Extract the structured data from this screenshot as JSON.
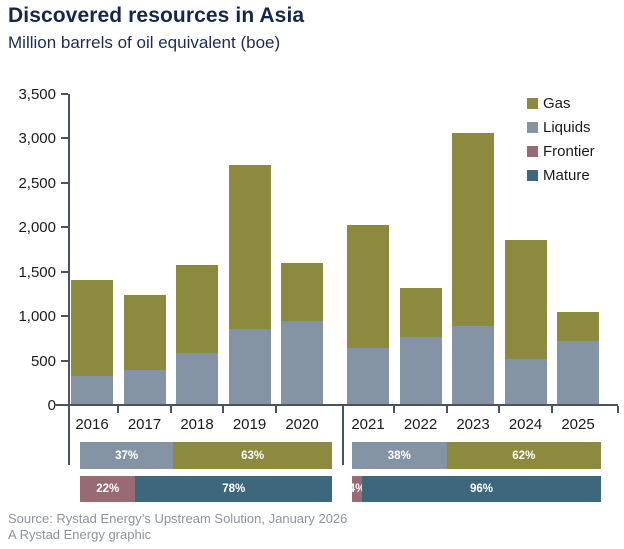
{
  "header": {
    "title": "Discovered resources in Asia",
    "subtitle": "Million barrels of oil equivalent (boe)"
  },
  "colors": {
    "gas": "#8c8a3f",
    "liquids": "#8594a4",
    "frontier": "#9a6a72",
    "mature": "#3d687c",
    "title_navy": "#15284b",
    "axis": "#4a545c",
    "tick_label": "#1a1a1a",
    "source_gray": "#8b949e"
  },
  "legend": {
    "items": [
      {
        "key": "gas",
        "label": "Gas"
      },
      {
        "key": "liquids",
        "label": "Liquids"
      },
      {
        "key": "frontier",
        "label": "Frontier"
      },
      {
        "key": "mature",
        "label": "Mature"
      }
    ]
  },
  "chart_data": {
    "type": "bar",
    "stacked": true,
    "title": "Discovered resources in Asia",
    "ylabel": "Million barrels of oil equivalent (boe)",
    "xlabel": "",
    "grid": false,
    "legend_position": "top-right",
    "ylim": [
      0,
      3500
    ],
    "ytick_values": [
      0,
      500,
      1000,
      1500,
      2000,
      2500,
      3000,
      3500
    ],
    "ytick_labels": [
      "0",
      "500",
      "1,000",
      "1,500",
      "2,000",
      "2,500",
      "3,000",
      "3,500"
    ],
    "categories": [
      "2016",
      "2017",
      "2018",
      "2019",
      "2020",
      "2021",
      "2022",
      "2023",
      "2024",
      "2025"
    ],
    "series": [
      {
        "name": "Liquids",
        "color_key": "liquids",
        "values": [
          330,
          390,
          580,
          860,
          950,
          640,
          760,
          890,
          520,
          720
        ]
      },
      {
        "name": "Gas",
        "color_key": "gas",
        "values": [
          1080,
          850,
          1000,
          1840,
          650,
          1390,
          560,
          2170,
          1340,
          330
        ]
      }
    ],
    "group_split_bars": [
      {
        "group_years": [
          "2016",
          "2020"
        ],
        "rows": [
          [
            {
              "key": "liquids",
              "label": "37%",
              "pct": 37
            },
            {
              "key": "gas",
              "label": "63%",
              "pct": 63
            }
          ],
          [
            {
              "key": "frontier",
              "label": "22%",
              "pct": 22
            },
            {
              "key": "mature",
              "label": "78%",
              "pct": 78
            }
          ]
        ]
      },
      {
        "group_years": [
          "2021",
          "2025"
        ],
        "rows": [
          [
            {
              "key": "liquids",
              "label": "38%",
              "pct": 38
            },
            {
              "key": "gas",
              "label": "62%",
              "pct": 62
            }
          ],
          [
            {
              "key": "frontier",
              "label": "4%",
              "pct": 4
            },
            {
              "key": "mature",
              "label": "96%",
              "pct": 96
            }
          ]
        ]
      }
    ]
  },
  "footer": {
    "source": "Source: Rystad Energy’s Upstream Solution, January 2026",
    "credit": "A Rystad Energy graphic"
  }
}
